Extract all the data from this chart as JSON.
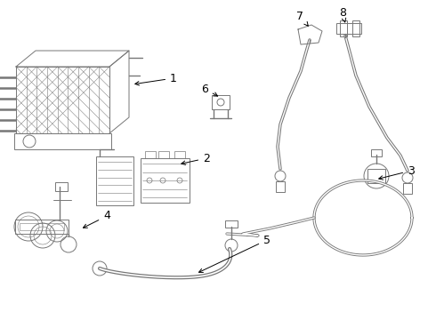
{
  "bg_color": "#ffffff",
  "line_color": "#777777",
  "label_color": "#000000",
  "figsize": [
    4.9,
    3.6
  ],
  "dpi": 100
}
